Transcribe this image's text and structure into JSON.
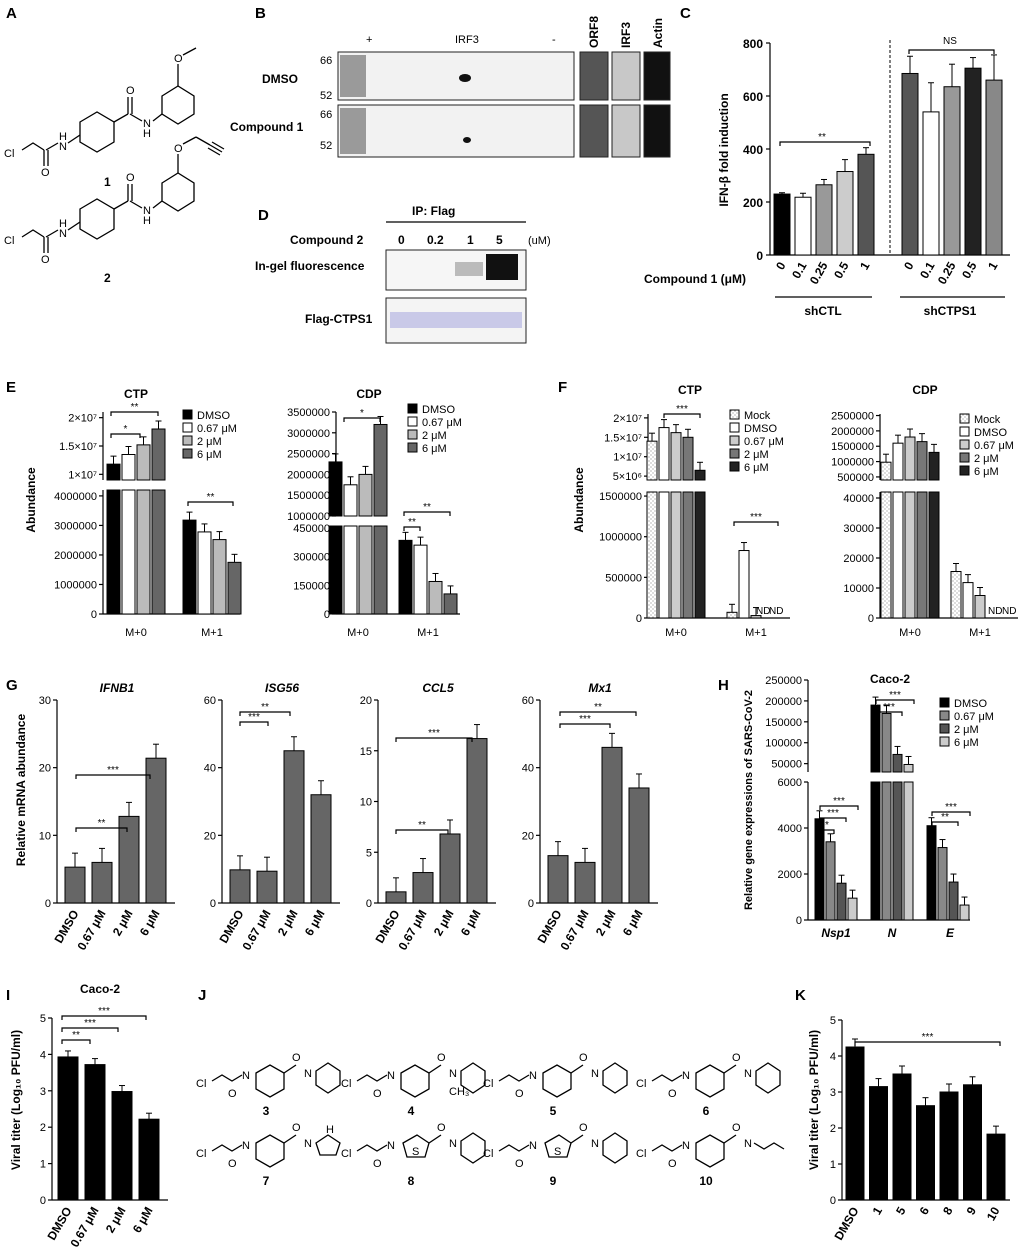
{
  "panels": {
    "A": {
      "label": "A",
      "compounds": [
        {
          "number": "1"
        },
        {
          "number": "2"
        }
      ],
      "atoms": {
        "Cl": "Cl",
        "O": "O",
        "N": "N",
        "H": "H"
      }
    },
    "B": {
      "label": "B",
      "header_plus": "+",
      "header_irf3": "IRF3",
      "header_minus": "-",
      "rows": [
        "DMSO",
        "Compound 1"
      ],
      "markers": [
        "66",
        "52"
      ],
      "side_blots": [
        "ORF8",
        "IRF3",
        "Actin"
      ]
    },
    "C": {
      "label": "C",
      "ylabel": "IFN-β fold induction",
      "xlabel": "Compound 1 (μM)",
      "groups": [
        "shCTL",
        "shCTPS1"
      ],
      "sig_left": "**",
      "sig_right": "NS"
    },
    "D": {
      "label": "D",
      "ip": "IP: Flag",
      "compound": "Compound 2",
      "doses": [
        "0",
        "0.2",
        "1",
        "5"
      ],
      "unit": "(uM)",
      "row1": "In-gel fluorescence",
      "row2": "Flag-CTPS1"
    },
    "E": {
      "label": "E",
      "ylabel": "Abundance",
      "ctp_title": "CTP",
      "cdp_title": "CDP",
      "legend": [
        "DMSO",
        "0.67 μM",
        "2 μM",
        "6 μM"
      ],
      "ctp_upper_ticks": [
        "2×10⁷",
        "1.5×10⁷",
        "1×10⁷"
      ],
      "ctp_lower_ticks": [
        "4000000",
        "3000000",
        "2000000",
        "1000000",
        "0"
      ],
      "cdp_upper_ticks": [
        "3500000",
        "3000000",
        "2500000",
        "2000000",
        "1500000",
        "1000000"
      ],
      "cdp_lower_ticks": [
        "450000",
        "300000",
        "150000",
        "0"
      ],
      "xcats": [
        "M+0",
        "M+1"
      ]
    },
    "F": {
      "label": "F",
      "ylabel": "Abundance",
      "ctp_title": "CTP",
      "cdp_title": "CDP",
      "legend": [
        "Mock",
        "DMSO",
        "0.67 μM",
        "2 μM",
        "6 μM"
      ],
      "ctp_upper_ticks": [
        "2×10⁷",
        "1.5×10⁷",
        "1×10⁷",
        "5×10⁶"
      ],
      "ctp_lower_ticks": [
        "1500000",
        "1000000",
        "500000",
        "0"
      ],
      "cdp_upper_ticks": [
        "2500000",
        "2000000",
        "1500000",
        "1000000",
        "500000"
      ],
      "cdp_lower_ticks": [
        "40000",
        "30000",
        "20000",
        "10000",
        "0"
      ],
      "nd": "ND",
      "xcats": [
        "M+0",
        "M+1"
      ]
    },
    "G": {
      "label": "G",
      "ylabel": "Relative mRNA abundance",
      "genes": [
        "IFNB1",
        "ISG56",
        "CCL5",
        "Mx1"
      ],
      "xcats": [
        "DMSO",
        "0.67 μM",
        "2 μM",
        "6 μM"
      ]
    },
    "H": {
      "label": "H",
      "title": "Caco-2",
      "ylabel": "Relative gene expressions of SARS-CoV-2",
      "legend": [
        "DMSO",
        "0.67 μM",
        "2 μM",
        "6 μM"
      ],
      "upper_ticks": [
        "250000",
        "200000",
        "150000",
        "100000",
        "50000"
      ],
      "lower_ticks": [
        "6000",
        "4000",
        "2000",
        "0"
      ],
      "genes": [
        "Nsp1",
        "N",
        "E"
      ]
    },
    "I": {
      "label": "I",
      "title": "Caco-2",
      "ylabel": "Viral titer (Log₁₀ PFU/ml)",
      "xcats": [
        "DMSO",
        "0.67 μM",
        "2 μM",
        "6 μM"
      ]
    },
    "J": {
      "label": "J",
      "compounds": [
        "3",
        "4",
        "5",
        "6",
        "7",
        "8",
        "9",
        "10"
      ],
      "atoms": {
        "Cl": "Cl",
        "O": "O",
        "N": "N",
        "H": "H",
        "S": "S",
        "CH3": "CH₃"
      }
    },
    "K": {
      "label": "K",
      "ylabel": "Viral titer (Log₁₀ PFU/ml)",
      "xcats": [
        "DMSO",
        "1",
        "5",
        "6",
        "8",
        "9",
        "10"
      ]
    }
  },
  "chart_data": [
    {
      "panel": "C",
      "type": "bar",
      "ylabel": "IFN-β fold induction",
      "xlabel": "Compound 1 (μM)",
      "ylim": [
        0,
        800
      ],
      "categories": [
        "0",
        "0.1",
        "0.25",
        "0.5",
        "1",
        "0",
        "0.1",
        "0.25",
        "0.5",
        "1"
      ],
      "groups": [
        "shCTL",
        "shCTL",
        "shCTL",
        "shCTL",
        "shCTL",
        "shCTPS1",
        "shCTPS1",
        "shCTPS1",
        "shCTPS1",
        "shCTPS1"
      ],
      "values": [
        230,
        218,
        265,
        315,
        380,
        685,
        540,
        635,
        705,
        660
      ],
      "errors": [
        5,
        15,
        20,
        45,
        25,
        65,
        110,
        85,
        40,
        95
      ]
    },
    {
      "panel": "E-CTP",
      "type": "bar",
      "title": "CTP",
      "ylabel": "Abundance",
      "categories": [
        "M+0",
        "M+1"
      ],
      "series": [
        {
          "name": "DMSO",
          "values": [
            11800000,
            3180000
          ]
        },
        {
          "name": "0.67 μM",
          "values": [
            13500000,
            2780000
          ]
        },
        {
          "name": "2 μM",
          "values": [
            15200000,
            2520000
          ]
        },
        {
          "name": "6 μM",
          "values": [
            18000000,
            1750000
          ]
        }
      ]
    },
    {
      "panel": "E-CDP",
      "type": "bar",
      "title": "CDP",
      "ylabel": "Abundance",
      "categories": [
        "M+0",
        "M+1"
      ],
      "series": [
        {
          "name": "DMSO",
          "values": [
            2300000,
            385000
          ]
        },
        {
          "name": "0.67 μM",
          "values": [
            1750000,
            360000
          ]
        },
        {
          "name": "2 μM",
          "values": [
            2000000,
            170000
          ]
        },
        {
          "name": "6 μM",
          "values": [
            3200000,
            105000
          ]
        }
      ]
    },
    {
      "panel": "F-CTP",
      "type": "bar",
      "title": "CTP",
      "ylabel": "Abundance",
      "categories": [
        "M+0",
        "M+1"
      ],
      "series": [
        {
          "name": "Mock",
          "values": [
            14000000,
            70000
          ]
        },
        {
          "name": "DMSO",
          "values": [
            17500000,
            830000
          ]
        },
        {
          "name": "0.67 μM",
          "values": [
            16200000,
            30000
          ]
        },
        {
          "name": "2 μM",
          "values": [
            15000000,
            0
          ]
        },
        {
          "name": "6 μM",
          "values": [
            6500000,
            0
          ]
        }
      ]
    },
    {
      "panel": "F-CDP",
      "type": "bar",
      "title": "CDP",
      "ylabel": "Abundance",
      "categories": [
        "M+0",
        "M+1"
      ],
      "series": [
        {
          "name": "Mock",
          "values": [
            980000,
            15500
          ]
        },
        {
          "name": "DMSO",
          "values": [
            1600000,
            11800
          ]
        },
        {
          "name": "0.67 μM",
          "values": [
            1800000,
            7500
          ]
        },
        {
          "name": "2 μM",
          "values": [
            1650000,
            0
          ]
        },
        {
          "name": "6 μM",
          "values": [
            1300000,
            0
          ]
        }
      ]
    },
    {
      "panel": "G",
      "type": "bar",
      "ylabel": "Relative mRNA abundance",
      "categories": [
        "DMSO",
        "0.67 μM",
        "2 μM",
        "6 μM"
      ],
      "series": [
        {
          "name": "IFNB1",
          "values": [
            5.3,
            6.0,
            12.8,
            21.4
          ],
          "ylim": [
            0,
            30
          ]
        },
        {
          "name": "ISG56",
          "values": [
            9.8,
            9.4,
            45.0,
            32.0
          ],
          "ylim": [
            0,
            60
          ]
        },
        {
          "name": "CCL5",
          "values": [
            1.1,
            3.0,
            6.8,
            16.2
          ],
          "ylim": [
            0,
            25
          ]
        },
        {
          "name": "Mx1",
          "values": [
            14.0,
            12.0,
            46.0,
            34.0
          ],
          "ylim": [
            0,
            60
          ]
        }
      ]
    },
    {
      "panel": "H",
      "type": "bar",
      "title": "Caco-2",
      "ylabel": "Relative gene expressions of SARS-CoV-2",
      "categories": [
        "Nsp1",
        "N",
        "E"
      ],
      "series": [
        {
          "name": "DMSO",
          "values": [
            4400,
            190000,
            4100
          ]
        },
        {
          "name": "0.67 μM",
          "values": [
            3400,
            170000,
            3150
          ]
        },
        {
          "name": "2 μM",
          "values": [
            1600,
            72000,
            1650
          ]
        },
        {
          "name": "6 μM",
          "values": [
            950,
            48000,
            650
          ]
        }
      ]
    },
    {
      "panel": "I",
      "type": "bar",
      "title": "Caco-2",
      "ylabel": "Viral titer (Log₁₀ PFU/ml)",
      "ylim": [
        0,
        5
      ],
      "categories": [
        "DMSO",
        "0.67 μM",
        "2 μM",
        "6 μM"
      ],
      "values": [
        3.93,
        3.72,
        2.98,
        2.22
      ]
    },
    {
      "panel": "K",
      "type": "bar",
      "ylabel": "Viral titer (Log₁₀ PFU/ml)",
      "ylim": [
        0,
        5
      ],
      "categories": [
        "DMSO",
        "1",
        "5",
        "6",
        "8",
        "9",
        "10"
      ],
      "values": [
        4.25,
        3.15,
        3.5,
        2.62,
        3.0,
        3.2,
        1.83
      ]
    }
  ]
}
